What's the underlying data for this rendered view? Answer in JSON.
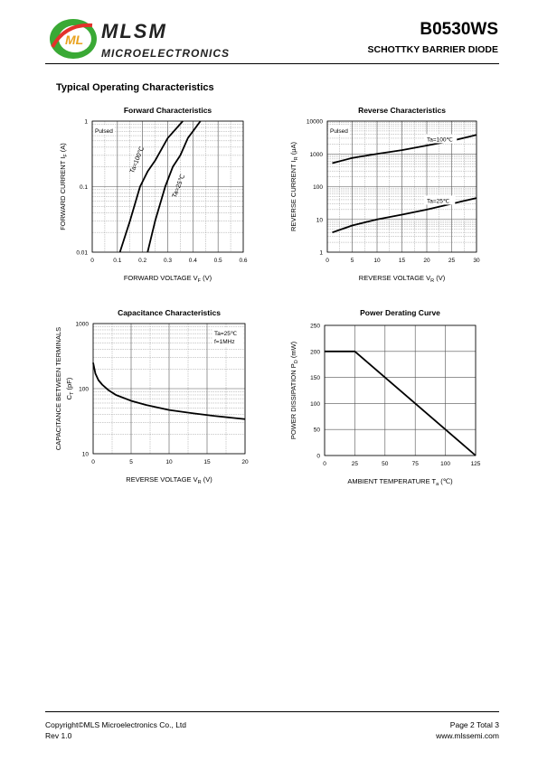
{
  "header": {
    "brand": "MLSM",
    "brand_sub": "MICROELECTRONICS",
    "logo_letters": "ML",
    "part_number": "B0530WS",
    "part_description": "SCHOTTKY BARRIER DIODE"
  },
  "section_title": "Typical Operating Characteristics",
  "footer": {
    "copyright": "Copyright©MLS Microelectronics Co., Ltd",
    "rev": "Rev 1.0",
    "page": "Page 2 Total 3",
    "website": "www.mlssemi.com"
  },
  "chart_data": [
    {
      "id": "forward",
      "type": "line",
      "title": "Forward Characteristics",
      "xlabel": "FORWARD   VOLTAGE   V",
      "xlabel_sub": "F",
      "xlabel_unit": "(V)",
      "ylabel": "FORWARD CURRENT   I",
      "ylabel_sub": "F",
      "ylabel_unit": "(A)",
      "xlim": [
        0,
        0.6
      ],
      "ylim": [
        0.01,
        1
      ],
      "yscale": "log",
      "xticks": [
        "0",
        "0.1",
        "0.2",
        "0.3",
        "0.4",
        "0.5",
        "0.6"
      ],
      "yticks": [
        "0.01",
        "0.1",
        "1"
      ],
      "note": "Pulsed",
      "series": [
        {
          "name": "Ta=100℃",
          "x": [
            0.11,
            0.15,
            0.19,
            0.22,
            0.25,
            0.3,
            0.36
          ],
          "y": [
            0.01,
            0.03,
            0.1,
            0.17,
            0.25,
            0.55,
            1.0
          ]
        },
        {
          "name": "Ta=25℃",
          "x": [
            0.22,
            0.25,
            0.29,
            0.32,
            0.35,
            0.38,
            0.43
          ],
          "y": [
            0.01,
            0.03,
            0.1,
            0.2,
            0.3,
            0.55,
            1.0
          ]
        }
      ],
      "series_labels": [
        "Ta=100℃",
        "Ta=25℃"
      ]
    },
    {
      "id": "reverse",
      "type": "line",
      "title": "Reverse Characteristics",
      "xlabel": "REVERSE VOLTAGE  V",
      "xlabel_sub": "R",
      "xlabel_unit": "(V)",
      "ylabel": "REVERSE CURRENT  I",
      "ylabel_sub": "R",
      "ylabel_unit": "(μA)",
      "xlim": [
        0,
        30
      ],
      "ylim": [
        1,
        10000
      ],
      "yscale": "log",
      "xticks": [
        "0",
        "5",
        "10",
        "15",
        "20",
        "25",
        "30"
      ],
      "yticks": [
        "1",
        "10",
        "100",
        "1000",
        "10000"
      ],
      "note": "Pulsed",
      "series": [
        {
          "name": "Ta=100℃",
          "x": [
            1,
            5,
            10,
            15,
            20,
            25,
            30
          ],
          "y": [
            520,
            750,
            1000,
            1300,
            1800,
            2500,
            3800
          ]
        },
        {
          "name": "Ta=25℃",
          "x": [
            1,
            5,
            10,
            15,
            20,
            25,
            30
          ],
          "y": [
            4,
            6.5,
            10,
            14,
            20,
            30,
            45
          ]
        }
      ],
      "series_labels": [
        "Ta=100℃",
        "Ta=25℃"
      ]
    },
    {
      "id": "capacitance",
      "type": "line",
      "title": "Capacitance   Characteristics",
      "xlabel": "REVERSE   VOLTAGE   V",
      "xlabel_sub": "R",
      "xlabel_unit": "(V)",
      "ylabel": "CAPACITANCE   BETWEEN   TERMINALS",
      "ylabel2": "C",
      "ylabel2_sub": "T",
      "ylabel2_unit": "(pF)",
      "xlim": [
        0,
        20
      ],
      "ylim": [
        10,
        1000
      ],
      "yscale": "log",
      "xticks": [
        "0",
        "5",
        "10",
        "15",
        "20"
      ],
      "yticks": [
        "10",
        "100",
        "1000"
      ],
      "notes": [
        "Ta=25℃",
        "f=1MHz"
      ],
      "series": [
        {
          "name": "",
          "x": [
            0,
            0.3,
            0.7,
            1.2,
            2,
            3,
            5,
            7,
            10,
            13,
            16,
            20
          ],
          "y": [
            250,
            170,
            135,
            115,
            95,
            80,
            65,
            56,
            47,
            42,
            38,
            34
          ]
        }
      ]
    },
    {
      "id": "derating",
      "type": "line",
      "title": "Power   Derating   Curve",
      "xlabel": "AMBIENT   TEMPERATURE   T",
      "xlabel_sub": "a",
      "xlabel_unit": "(℃)",
      "ylabel": "POWER  DISSIPATION P",
      "ylabel_sub": "D",
      "ylabel_unit": "(mW)",
      "xlim": [
        0,
        125
      ],
      "ylim": [
        0,
        250
      ],
      "yscale": "linear",
      "xticks": [
        "0",
        "25",
        "50",
        "75",
        "100",
        "125"
      ],
      "yticks": [
        "0",
        "50",
        "100",
        "150",
        "200",
        "250"
      ],
      "series": [
        {
          "name": "",
          "x": [
            0,
            25,
            125
          ],
          "y": [
            200,
            200,
            0
          ]
        }
      ]
    }
  ]
}
